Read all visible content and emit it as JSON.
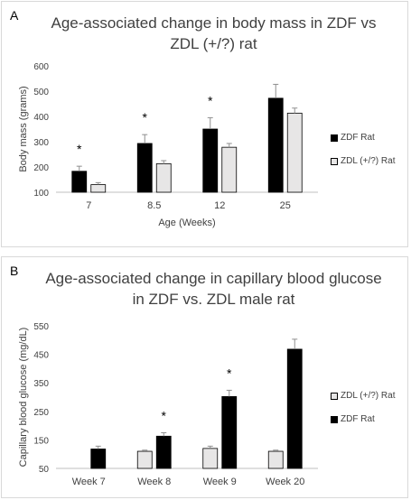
{
  "chart_data": [
    {
      "panel_label": "A",
      "type": "bar",
      "title_lines": [
        "Age-associated change in body mass in ZDF vs",
        "ZDL (+/?) rat"
      ],
      "xlabel": "Age (Weeks)",
      "ylabel": "Body mass (grams)",
      "ylim": [
        100,
        600
      ],
      "yticks": [
        100,
        200,
        300,
        400,
        500,
        600
      ],
      "categories": [
        "7",
        "8.5",
        "12",
        "25"
      ],
      "series": [
        {
          "name": "ZDF Rat",
          "color": "#000000",
          "values": [
            183,
            293,
            350,
            472
          ],
          "errors": [
            20,
            35,
            45,
            55
          ]
        },
        {
          "name": "ZDL (+/?) Rat",
          "color": "#e7e6e6",
          "values": [
            130,
            213,
            278,
            413
          ],
          "errors": [
            8,
            12,
            15,
            20
          ]
        }
      ],
      "annotations": [
        {
          "category": "7",
          "text": "*"
        },
        {
          "category": "8.5",
          "text": "*"
        },
        {
          "category": "12",
          "text": "*"
        }
      ],
      "legend_position": "right"
    },
    {
      "panel_label": "B",
      "type": "bar",
      "title_lines": [
        "Age-associated change in capillary blood glucose",
        "in ZDF vs. ZDL male rat"
      ],
      "xlabel": "",
      "ylabel": "Capillary blood glucose (mg/dL)",
      "ylim": [
        50,
        550
      ],
      "yticks": [
        50,
        150,
        250,
        350,
        450,
        550
      ],
      "categories": [
        "Week 7",
        "Week 8",
        "Week 9",
        "Week 20"
      ],
      "series": [
        {
          "name": "ZDL (+/?) Rat",
          "color": "#e7e6e6",
          "values": [
            null,
            110,
            120,
            110
          ],
          "errors": [
            0,
            4,
            8,
            4
          ]
        },
        {
          "name": "ZDF Rat",
          "color": "#000000",
          "values": [
            118,
            163,
            302,
            468
          ],
          "errors": [
            10,
            12,
            22,
            35
          ]
        }
      ],
      "annotations": [
        {
          "category": "Week 8",
          "text": "*"
        },
        {
          "category": "Week 9",
          "text": "*"
        }
      ],
      "legend_position": "right"
    }
  ]
}
